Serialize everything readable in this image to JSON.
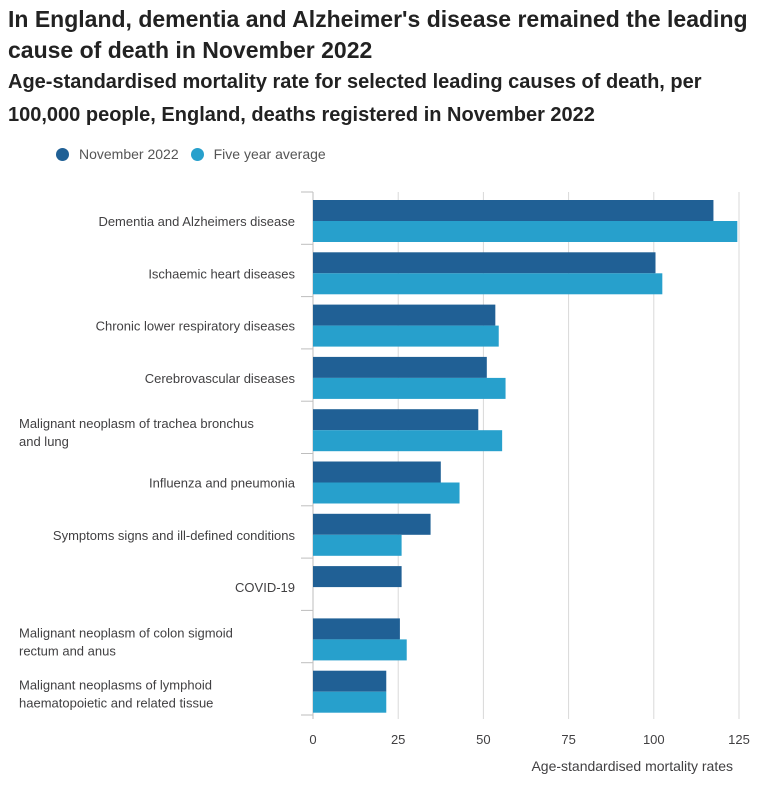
{
  "title": "In England, dementia and Alzheimer's disease remained the leading cause of death in November 2022",
  "subtitle": "Age-standardised mortality rate for selected leading causes of death, per 100,000 people, England, deaths registered in November 2022",
  "colors": {
    "november": "#206095",
    "average": "#27a0cc",
    "grid": "#d9d9d9",
    "axis": "#bebebe",
    "label": "#414042"
  },
  "chart_data": {
    "type": "bar",
    "orientation": "horizontal",
    "title": "Age-standardised mortality rate for selected leading causes of death, per 100,000 people, England, deaths registered in November 2022",
    "xlabel": "Age-standardised mortality rates",
    "ylabel": "",
    "xlim": [
      0,
      125
    ],
    "xticks": [
      0,
      25,
      50,
      75,
      100,
      125
    ],
    "grid": true,
    "legend_position": "top-left",
    "categories": [
      [
        "Dementia and Alzheimers disease"
      ],
      [
        "Ischaemic heart diseases"
      ],
      [
        "Chronic lower respiratory diseases"
      ],
      [
        "Cerebrovascular diseases"
      ],
      [
        "Malignant neoplasm of trachea bronchus",
        "and lung"
      ],
      [
        "Influenza and pneumonia"
      ],
      [
        "Symptoms signs and ill-defined conditions"
      ],
      [
        "COVID-19"
      ],
      [
        "Malignant neoplasm of colon sigmoid",
        "rectum and anus"
      ],
      [
        "Malignant neoplasms of lymphoid",
        "haematopoietic and related tissue"
      ]
    ],
    "series": [
      {
        "name": "November 2022",
        "color": "#206095",
        "values": [
          117.5,
          100.5,
          53.5,
          51,
          48.5,
          37.5,
          34.5,
          26,
          25.5,
          21.5
        ]
      },
      {
        "name": "Five year average",
        "color": "#27a0cc",
        "values": [
          124.5,
          102.5,
          54.5,
          56.5,
          55.5,
          43,
          26,
          null,
          27.5,
          21.5
        ]
      }
    ]
  }
}
